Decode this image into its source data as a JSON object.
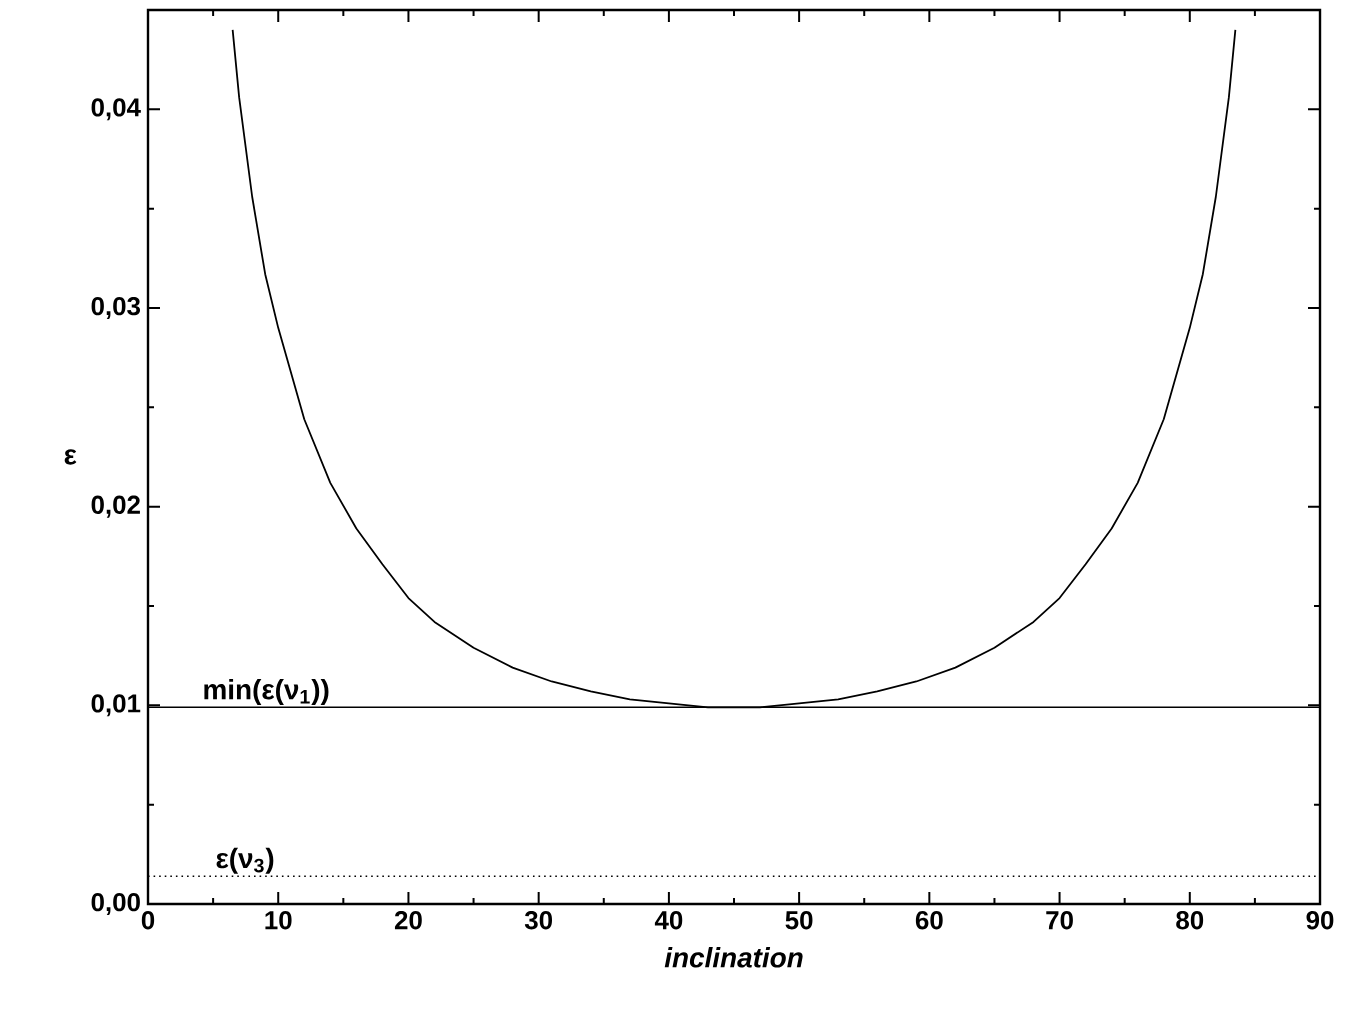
{
  "chart_data": {
    "type": "line",
    "xlabel": "*inclination*",
    "ylabel": "ε",
    "x": [
      6.5,
      7,
      8,
      9,
      10,
      12,
      14,
      16,
      18,
      20,
      22,
      25,
      28,
      31,
      34,
      37,
      40,
      43,
      45,
      47,
      50,
      53,
      56,
      59,
      62,
      65,
      68,
      70,
      72,
      74,
      76,
      78,
      80,
      81,
      82,
      83,
      83.5
    ],
    "series": [
      {
        "color": "#000000",
        "values": [
          0.044,
          0.0406,
          0.0356,
          0.0317,
          0.029,
          0.0244,
          0.0212,
          0.0189,
          0.0171,
          0.0154,
          0.0142,
          0.0129,
          0.0119,
          0.0112,
          0.0107,
          0.0103,
          0.0101,
          0.0099,
          0.0099,
          0.0099,
          0.0101,
          0.0103,
          0.0107,
          0.0112,
          0.0119,
          0.0129,
          0.0142,
          0.0154,
          0.0171,
          0.0189,
          0.0212,
          0.0244,
          0.029,
          0.0317,
          0.0356,
          0.0406,
          0.044
        ]
      }
    ],
    "xlim": [
      0,
      90
    ],
    "ylim": [
      0,
      0.045
    ],
    "xticks": [
      0,
      10,
      20,
      30,
      40,
      50,
      60,
      70,
      80,
      90
    ],
    "yticks": [
      {
        "value": 0,
        "label": "0,00"
      },
      {
        "value": 0.01,
        "label": "0,01"
      },
      {
        "value": 0.02,
        "label": "0,02"
      },
      {
        "value": 0.03,
        "label": "0,03"
      },
      {
        "value": 0.04,
        "label": "0,04"
      }
    ],
    "ref_lines": [
      {
        "axis": "y",
        "value": 0.0099,
        "label": "min(ε(ν$_{1}$))",
        "line_style": "solid"
      },
      {
        "axis": "y",
        "value": 0.0014,
        "label": "ε(ν$_{3}$)",
        "line_style": "dotted"
      }
    ],
    "marker": "none",
    "line_style": "solid"
  }
}
